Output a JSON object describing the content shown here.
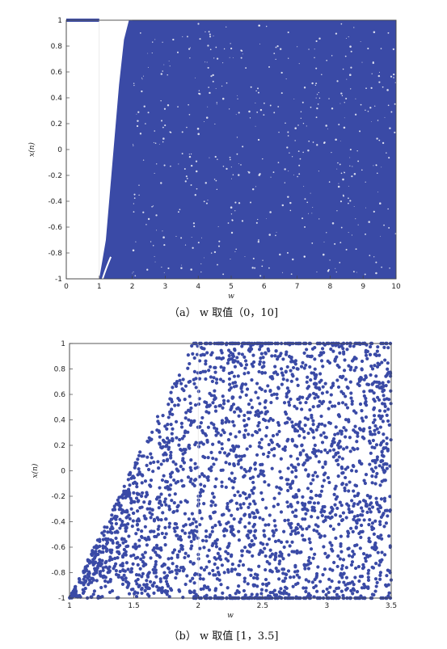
{
  "chart_data": [
    {
      "type": "scatter",
      "xlabel": "w",
      "ylabel": "x(n)",
      "xlim": [
        0,
        10
      ],
      "ylim": [
        -1,
        1
      ],
      "xticks": [
        "0",
        "1",
        "2",
        "3",
        "4",
        "5",
        "6",
        "7",
        "8",
        "9",
        "10"
      ],
      "yticks": [
        "-1",
        "-0.8",
        "-0.6",
        "-0.4",
        "-0.2",
        "0",
        "0.2",
        "0.4",
        "0.6",
        "0.8",
        "1"
      ],
      "caption": "（a） w 取值（0，10]",
      "point_color": "#3a4aa6",
      "grid": "partial",
      "description_points": {
        "flat_segment": {
          "x": [
            0,
            1
          ],
          "y": 1
        },
        "fill_start_bottom": {
          "x": 1.0,
          "y": -1
        },
        "fill_start_top": {
          "x": 1.9,
          "y": 1
        },
        "dense_region": {
          "x": [
            1.9,
            10
          ],
          "y": [
            -1,
            1
          ]
        }
      }
    },
    {
      "type": "scatter",
      "xlabel": "w",
      "ylabel": "x(n)",
      "xlim": [
        1,
        3.5
      ],
      "ylim": [
        -1,
        1
      ],
      "xticks": [
        "1",
        "1.5",
        "2",
        "2.5",
        "3",
        "3.5"
      ],
      "yticks": [
        "-1",
        "-0.8",
        "-0.6",
        "-0.4",
        "-0.2",
        "0",
        "0.2",
        "0.4",
        "0.6",
        "0.8",
        "1"
      ],
      "caption": "（b） w 取值 [1，3.5]",
      "point_color": "#3a4aa6",
      "grid": "partial",
      "description_points": {
        "envelope_lower_start": {
          "x": 1.0,
          "y": -1
        },
        "envelope_upper_end": {
          "x": 1.95,
          "y": 1
        },
        "dense_region": {
          "x": [
            1.95,
            3.5
          ],
          "y": [
            -1,
            1
          ]
        }
      }
    }
  ]
}
